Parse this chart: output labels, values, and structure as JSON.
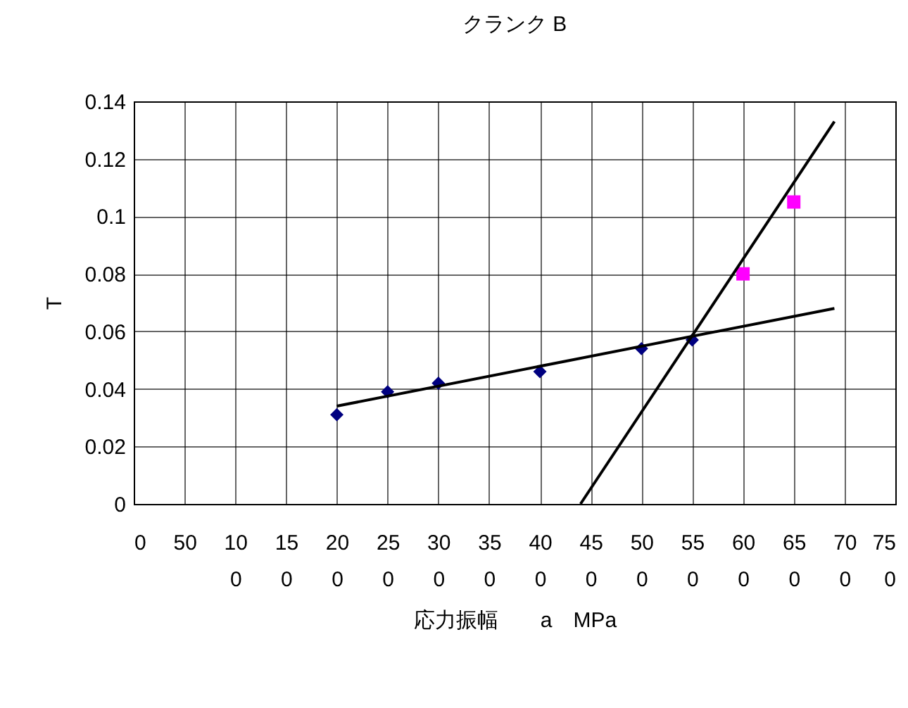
{
  "chart_data": {
    "type": "scatter",
    "title": "クランク B",
    "xlabel": "応力振幅　　a　MPa",
    "ylabel": "T",
    "xlim": [
      0,
      750
    ],
    "xticks": [
      0,
      50,
      100,
      150,
      200,
      250,
      300,
      350,
      400,
      450,
      500,
      550,
      600,
      650,
      700,
      750
    ],
    "ylim": [
      0,
      0.14
    ],
    "yticks": [
      0,
      0.02,
      0.04,
      0.06,
      0.08,
      0.1,
      0.12,
      0.14
    ],
    "grid": true,
    "series": [
      {
        "marker": "diamond",
        "color": "#000080",
        "x": [
          200,
          250,
          300,
          400,
          500,
          550
        ],
        "values": [
          0.031,
          0.039,
          0.042,
          0.046,
          0.054,
          0.057
        ]
      },
      {
        "marker": "square",
        "color": "#ff00ff",
        "x": [
          600,
          650
        ],
        "values": [
          0.08,
          0.105
        ]
      },
      {
        "type": "line",
        "marker": "none",
        "color": "#000000",
        "x": [
          200,
          690
        ],
        "values": [
          0.034,
          0.068
        ]
      },
      {
        "type": "line",
        "marker": "none",
        "color": "#000000",
        "x": [
          440,
          690
        ],
        "values": [
          0,
          0.133
        ]
      }
    ]
  }
}
